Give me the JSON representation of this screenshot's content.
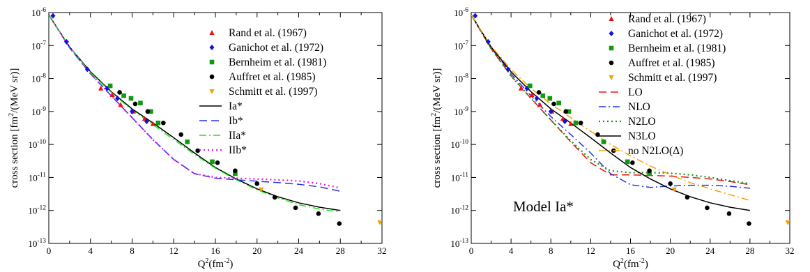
{
  "chart_data": [
    {
      "type": "scatter",
      "panel": "left",
      "xlabel": "Q^2(fm^-2)",
      "ylabel": "cross section [fm^2/(MeV sr)]",
      "xlim": [
        0,
        32
      ],
      "ylim": [
        1e-13,
        1e-06
      ],
      "yscale": "log",
      "xticks": [
        "0",
        "4",
        "8",
        "12",
        "16",
        "20",
        "24",
        "28",
        "32"
      ],
      "yticks": [
        {
          "base": "10",
          "exp": "-13"
        },
        {
          "base": "10",
          "exp": "-12"
        },
        {
          "base": "10",
          "exp": "-11"
        },
        {
          "base": "10",
          "exp": "-10"
        },
        {
          "base": "10",
          "exp": "-9"
        },
        {
          "base": "10",
          "exp": "-8"
        },
        {
          "base": "10",
          "exp": "-7"
        },
        {
          "base": "10",
          "exp": "-6"
        }
      ],
      "annotation": "",
      "legend_position": "top-right",
      "series": [
        {
          "name": "Rand et al. (1967)",
          "kind": "points",
          "marker": "triangle-up",
          "color": "#ee1111",
          "x": [
            5.0,
            6.1,
            6.9,
            8.1,
            9.2,
            10.0
          ],
          "y": [
            5e-09,
            3.2e-09,
            1.6e-09,
            1e-09,
            6e-10,
            4.2e-10
          ]
        },
        {
          "name": "Ganichot et al. (1972)",
          "kind": "points",
          "marker": "diamond",
          "color": "#1111dd",
          "x": [
            0.4,
            1.7,
            3.7,
            5.6,
            6.6,
            8.0,
            9.4
          ],
          "y": [
            8e-07,
            1.3e-07,
            1.9e-08,
            5e-09,
            2.5e-09,
            1e-09,
            5e-10
          ]
        },
        {
          "name": "Bernheim et al. (1981)",
          "kind": "points",
          "marker": "square",
          "color": "#119911",
          "x": [
            5.9,
            7.2,
            7.9,
            8.8,
            9.8,
            10.5,
            13.3,
            15.7,
            17.9
          ],
          "y": [
            6e-09,
            3e-09,
            2.5e-09,
            1.8e-09,
            1e-09,
            4.5e-10,
            1.2e-10,
            3e-11,
            1.3e-11
          ]
        },
        {
          "name": "Auffret et al. (1985)",
          "kind": "points",
          "marker": "circle",
          "color": "#000000",
          "x": [
            6.8,
            8.3,
            9.5,
            11.0,
            12.7,
            14.3,
            16.2,
            17.9,
            20.0,
            21.7,
            23.7,
            25.9,
            27.9
          ],
          "y": [
            3.8e-09,
            1.7e-09,
            1e-09,
            4.5e-10,
            2e-10,
            6.5e-11,
            2.8e-11,
            1.6e-11,
            6.5e-12,
            2.5e-12,
            1.2e-12,
            8e-13,
            4e-13
          ]
        },
        {
          "name": "Schmitt et al. (1997)",
          "kind": "points",
          "marker": "triangle-down",
          "color": "#f5a000",
          "x": [
            20.4,
            31.8
          ],
          "y": [
            4.3e-12,
            4.3e-13
          ]
        },
        {
          "name": "Ia*",
          "kind": "line",
          "dash": "solid",
          "color": "#000000",
          "x": [
            0,
            2,
            4,
            6,
            8,
            10,
            12,
            14,
            16,
            18,
            20,
            22,
            24,
            26,
            28
          ],
          "y": [
            8.5e-07,
            9e-08,
            1.6e-08,
            4e-09,
            1.2e-09,
            4.5e-10,
            1.6e-10,
            5.5e-11,
            2e-11,
            9e-12,
            4.5e-12,
            2.6e-12,
            1.7e-12,
            1.25e-12,
            1e-12
          ]
        },
        {
          "name": "Ib*",
          "kind": "line",
          "dash": "long-dash",
          "color": "#2233ee",
          "x": [
            0,
            2,
            4,
            6,
            8,
            10,
            12,
            14,
            16,
            18,
            20,
            22,
            24,
            26,
            28
          ],
          "y": [
            8.5e-07,
            8.5e-08,
            1.4e-08,
            3e-09,
            6.5e-10,
            1.4e-10,
            3.5e-11,
            1.3e-11,
            9.5e-12,
            8.5e-12,
            7.7e-12,
            7e-12,
            6.2e-12,
            5.2e-12,
            3.8e-12
          ]
        },
        {
          "name": "IIa*",
          "kind": "line",
          "dash": "dash-dot",
          "color": "#11ee11",
          "x": [
            0,
            2,
            4,
            6,
            8,
            10,
            12,
            14,
            16,
            18,
            20,
            22,
            24,
            26,
            28
          ],
          "y": [
            8.5e-07,
            9e-08,
            1.5e-08,
            3.8e-09,
            1.1e-09,
            4e-10,
            1.4e-10,
            5e-11,
            1.9e-11,
            8.5e-12,
            4.2e-12,
            2.4e-12,
            1.5e-12,
            1.1e-12,
            9e-13
          ]
        },
        {
          "name": "IIb*",
          "kind": "line",
          "dash": "dotted",
          "color": "#ee11ee",
          "x": [
            0,
            2,
            4,
            6,
            8,
            10,
            12,
            14,
            16,
            18,
            20,
            22,
            24,
            26,
            28
          ],
          "y": [
            8.5e-07,
            8.5e-08,
            1.4e-08,
            3e-09,
            6.5e-10,
            1.4e-10,
            3.5e-11,
            1.3e-11,
            1e-11,
            9.5e-12,
            9e-12,
            8.5e-12,
            7.8e-12,
            6.5e-12,
            4.8e-12
          ]
        }
      ]
    },
    {
      "type": "scatter",
      "panel": "right",
      "xlabel": "Q^2(fm^-2)",
      "ylabel": "cross section [fm^2/(MeV sr)]",
      "xlim": [
        0,
        32
      ],
      "ylim": [
        1e-13,
        1e-06
      ],
      "yscale": "log",
      "xticks": [
        "0",
        "4",
        "8",
        "12",
        "16",
        "20",
        "24",
        "28",
        "32"
      ],
      "yticks": [
        {
          "base": "10",
          "exp": "-13"
        },
        {
          "base": "10",
          "exp": "-12"
        },
        {
          "base": "10",
          "exp": "-11"
        },
        {
          "base": "10",
          "exp": "-10"
        },
        {
          "base": "10",
          "exp": "-9"
        },
        {
          "base": "10",
          "exp": "-8"
        },
        {
          "base": "10",
          "exp": "-7"
        },
        {
          "base": "10",
          "exp": "-6"
        }
      ],
      "annotation": "Model Ia*",
      "legend_position": "top-right",
      "series": [
        {
          "name": "Rand et al. (1967)",
          "kind": "points",
          "marker": "triangle-up",
          "color": "#ee1111",
          "x": [
            5.0,
            6.1,
            6.9,
            8.1,
            9.2,
            10.0
          ],
          "y": [
            5e-09,
            3.2e-09,
            1.6e-09,
            1e-09,
            6e-10,
            4.2e-10
          ]
        },
        {
          "name": "Ganichot et al. (1972)",
          "kind": "points",
          "marker": "diamond",
          "color": "#1111dd",
          "x": [
            0.4,
            1.7,
            3.7,
            5.6,
            6.6,
            8.0,
            9.4
          ],
          "y": [
            8e-07,
            1.3e-07,
            1.9e-08,
            5e-09,
            2.5e-09,
            1e-09,
            5e-10
          ]
        },
        {
          "name": "Bernheim et al. (1981)",
          "kind": "points",
          "marker": "square",
          "color": "#119911",
          "x": [
            5.9,
            7.2,
            7.9,
            8.8,
            9.8,
            10.5,
            13.3,
            15.7,
            17.9
          ],
          "y": [
            6e-09,
            3e-09,
            2.5e-09,
            1.8e-09,
            1e-09,
            4.5e-10,
            1.2e-10,
            3e-11,
            1.3e-11
          ]
        },
        {
          "name": "Auffret et al. (1985)",
          "kind": "points",
          "marker": "circle",
          "color": "#000000",
          "x": [
            6.8,
            8.3,
            9.5,
            11.0,
            12.7,
            14.3,
            16.2,
            17.9,
            20.0,
            21.7,
            23.7,
            25.9,
            27.9
          ],
          "y": [
            3.8e-09,
            1.7e-09,
            1e-09,
            4.5e-10,
            2e-10,
            6.5e-11,
            2.8e-11,
            1.6e-11,
            6.5e-12,
            2.5e-12,
            1.2e-12,
            8e-13,
            4e-13
          ]
        },
        {
          "name": "Schmitt et al. (1997)",
          "kind": "points",
          "marker": "triangle-down",
          "color": "#f5a000",
          "x": [
            20.4,
            31.8
          ],
          "y": [
            4.3e-12,
            4.3e-13
          ]
        },
        {
          "name": "LO",
          "kind": "line",
          "dash": "long-dash",
          "color": "#ee1111",
          "x": [
            0,
            2,
            4,
            6,
            8,
            10,
            12,
            14,
            16,
            18,
            20,
            22,
            24,
            26,
            28
          ],
          "y": [
            8.5e-07,
            8e-08,
            1.2e-08,
            2.5e-09,
            5.5e-10,
            1.2e-10,
            2.8e-11,
            1.2e-11,
            1.2e-11,
            1.15e-11,
            1.1e-11,
            1e-11,
            9e-12,
            7.5e-12,
            6e-12
          ]
        },
        {
          "name": "NLO",
          "kind": "line",
          "dash": "dash-dot",
          "color": "#2233ee",
          "x": [
            0,
            2,
            4,
            6,
            8,
            10,
            12,
            14,
            16,
            18,
            20,
            22,
            24,
            26,
            28
          ],
          "y": [
            8.5e-07,
            8.5e-08,
            1.4e-08,
            3e-09,
            7e-10,
            2e-10,
            5.5e-11,
            1.3e-11,
            6e-12,
            5e-12,
            5.5e-12,
            5.8e-12,
            5.8e-12,
            5.4e-12,
            4.7e-12
          ]
        },
        {
          "name": "N2LO",
          "kind": "line",
          "dash": "dotted",
          "color": "#119911",
          "x": [
            0,
            2,
            4,
            6,
            8,
            10,
            12,
            14,
            16,
            18,
            20,
            22,
            24,
            26,
            28
          ],
          "y": [
            8.5e-07,
            8e-08,
            1.2e-08,
            2.5e-09,
            5.5e-10,
            1.3e-10,
            3.5e-11,
            1.6e-11,
            1.4e-11,
            1.4e-11,
            1.35e-11,
            1.2e-11,
            1e-11,
            8e-12,
            6.5e-12
          ]
        },
        {
          "name": "N3LO",
          "kind": "line",
          "dash": "solid",
          "color": "#000000",
          "x": [
            0,
            2,
            4,
            6,
            8,
            10,
            12,
            14,
            16,
            18,
            20,
            22,
            24,
            26,
            28
          ],
          "y": [
            8.5e-07,
            9e-08,
            1.6e-08,
            4e-09,
            1.2e-09,
            4.5e-10,
            1.6e-10,
            5.5e-11,
            2e-11,
            9e-12,
            4.5e-12,
            2.6e-12,
            1.7e-12,
            1.25e-12,
            1e-12
          ]
        },
        {
          "name": "no N2LO(Δ)",
          "kind": "line",
          "dash": "dash-dot",
          "color": "#f5a000",
          "x": [
            0,
            2,
            4,
            6,
            8,
            10,
            12,
            14,
            16,
            18,
            20,
            22,
            24,
            26,
            28
          ],
          "y": [
            8.5e-07,
            9.5e-08,
            1.9e-08,
            5e-09,
            1.7e-09,
            6.5e-10,
            2.5e-10,
            1e-10,
            4.5e-11,
            2.2e-11,
            1.2e-11,
            7e-12,
            4.5e-12,
            3e-12,
            2e-12
          ]
        }
      ]
    }
  ]
}
